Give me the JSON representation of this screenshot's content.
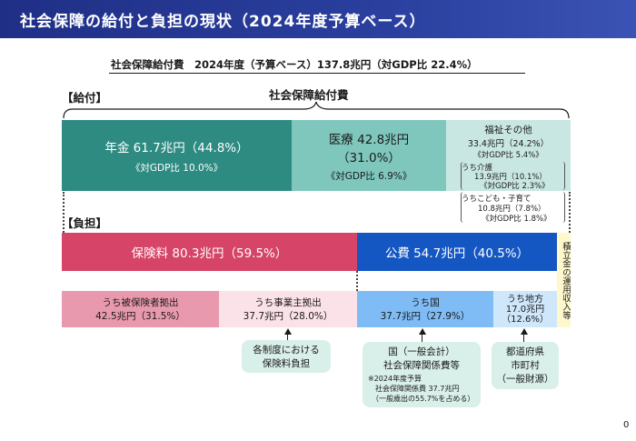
{
  "title": "社会保障の給付と負担の現状（2024年度予算ベース）",
  "subtitle": "社会保障給付費　2024年度（予算ベース）137.8兆円（対GDP比 22.4%）",
  "benefits": {
    "section_label": "【給付】",
    "brace_label": "社会保障給付費",
    "pension": {
      "line1": "年金 61.7兆円（44.8%）",
      "line2": "《対GDP比 10.0%》"
    },
    "medical": {
      "line1": "医療 42.8兆円",
      "line2": "（31.0%）",
      "line3": "《対GDP比 6.9%》"
    },
    "welfare": {
      "line1": "福祉その他",
      "line2": "33.4兆円（24.2%）",
      "line3": "《対GDP比 5.4%》",
      "care": {
        "line1": "うち介護",
        "line2": "13.9兆円（10.1%）",
        "line3": "《対GDP比 2.3%》"
      },
      "children": {
        "line1": "うちこども・子育て",
        "line2": "10.8兆円（7.8%）",
        "line3": "《対GDP比 1.8%》"
      }
    }
  },
  "burden": {
    "section_label": "【負担】",
    "insurance": "保険料 80.3兆円（59.5%）",
    "public": "公費 54.7兆円（40.5%）",
    "reserve": "積立金の運用収入等",
    "insured": {
      "line1": "うち被保険者拠出",
      "line2": "42.5兆円（31.5%）"
    },
    "employer": {
      "line1": "うち事業主拠出",
      "line2": "37.7兆円（28.0%）"
    },
    "national": {
      "line1": "うち国",
      "line2": "37.7兆円（27.9%）"
    },
    "local": {
      "line1": "うち地方",
      "line2": "17.0兆円",
      "line3": "（12.6%）"
    }
  },
  "callouts": {
    "employer": {
      "line1": "各制度における",
      "line2": "保険料負担"
    },
    "national": {
      "line1": "国（一般会計）",
      "line2": "社会保障関係費等",
      "note1": "※2024年度予算",
      "note2": "社会保障関係費 37.7兆円",
      "note3": "（一般歳出の55.7%を占める）"
    },
    "local": {
      "line1": "都道府県",
      "line2": "市町村",
      "line3": "（一般財源）"
    }
  },
  "page_number": "0",
  "colors": {
    "header": "#2a3f9e",
    "pension": "#2e8b82",
    "medical": "#7fc7bd",
    "welfare": "#c9e7e2",
    "insurance": "#d64467",
    "public": "#1457c3",
    "insured": "#e899ad",
    "employer": "#fbe1e8",
    "national": "#7fbcf5",
    "local": "#cfe7fb",
    "reserve": "#fff8cc",
    "callout": "#d9efe9"
  }
}
